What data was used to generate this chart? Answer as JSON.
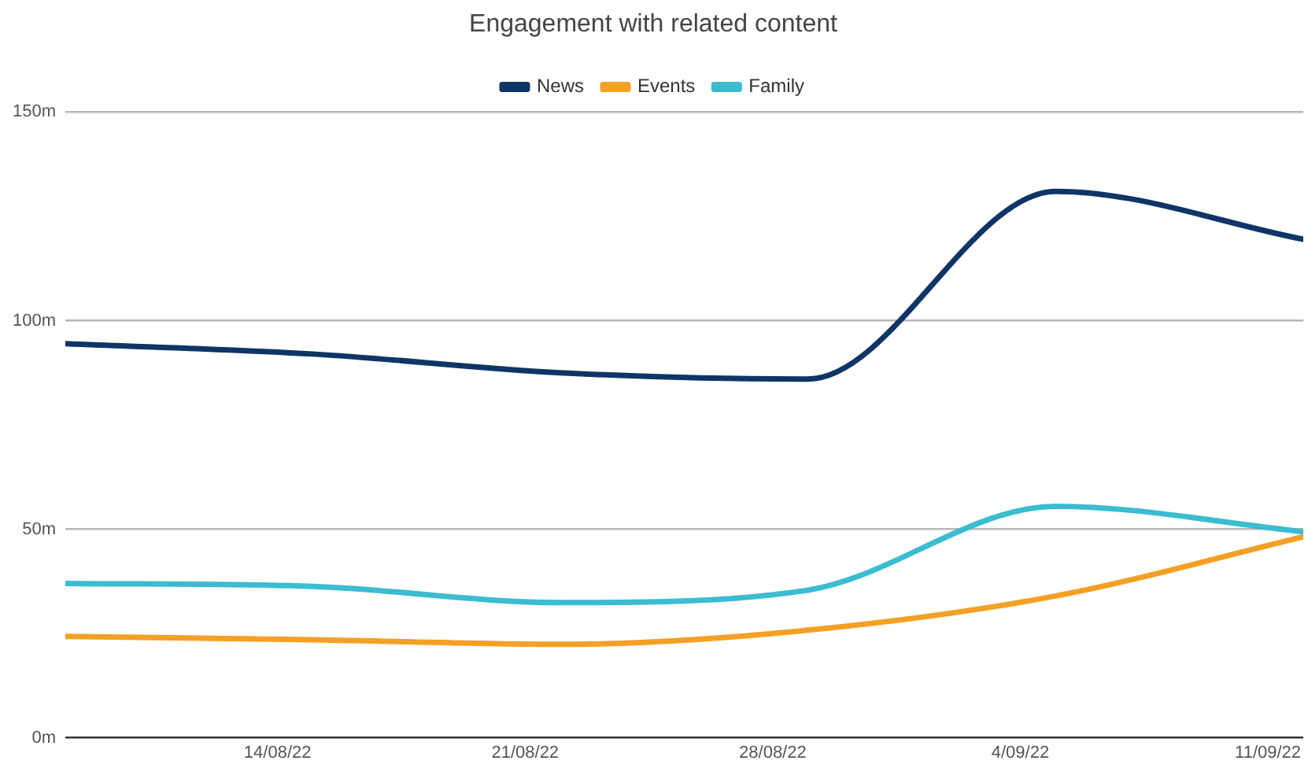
{
  "chart_data": {
    "type": "line",
    "title": "Engagement with related content",
    "x": [
      "--08-08",
      "--08-15",
      "--08-22",
      "--08-29",
      "--09-05",
      "--09-12"
    ],
    "series": [
      {
        "name": "News",
        "color": "#0e3566",
        "values": [
          94.5,
          92,
          87.5,
          86,
          131,
          119.5
        ]
      },
      {
        "name": "Events",
        "color": "#f4a025",
        "values": [
          24.3,
          23.5,
          22.4,
          25.8,
          34,
          48.2
        ]
      },
      {
        "name": "Family",
        "color": "#3bbcd0",
        "values": [
          37,
          36.3,
          32.4,
          35.4,
          55.5,
          49.4
        ]
      }
    ],
    "xlim": [
      "--08-08",
      "--09-12"
    ],
    "xticks": [
      {
        "value": "--08-14",
        "label": "14/08/22"
      },
      {
        "value": "--08-21",
        "label": "21/08/22"
      },
      {
        "value": "--08-28",
        "label": "28/08/22"
      },
      {
        "value": "--09-04",
        "label": "4/09/22"
      },
      {
        "value": "--09-11",
        "label": "11/09/22"
      }
    ],
    "ylim": [
      0,
      150
    ],
    "yticks": [
      {
        "value": 0,
        "label": "0m"
      },
      {
        "value": 50,
        "label": "50m"
      },
      {
        "value": 100,
        "label": "100m"
      },
      {
        "value": 150,
        "label": "150m"
      }
    ],
    "grid": "y",
    "legend": "top",
    "marker": "none",
    "line_style": "solid"
  }
}
